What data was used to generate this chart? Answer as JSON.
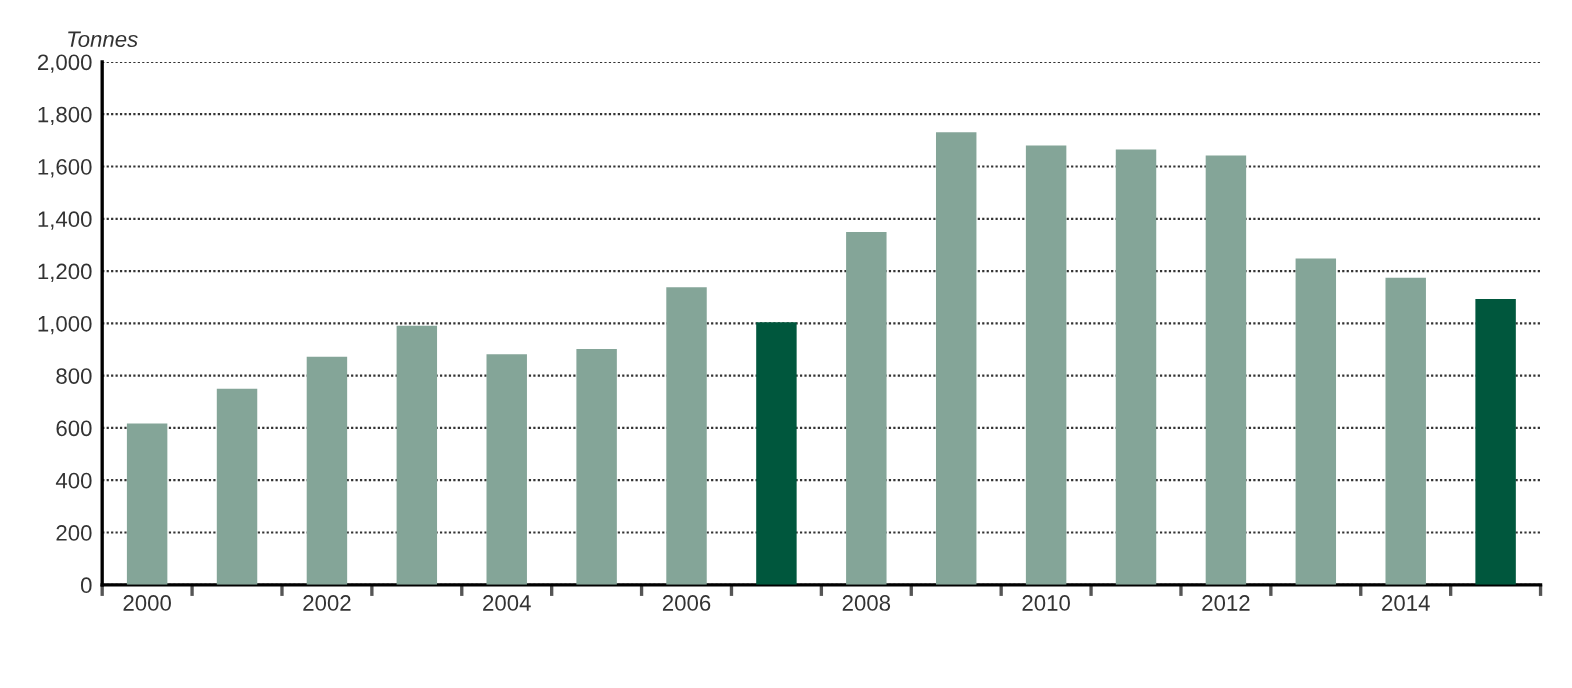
{
  "chart_data": {
    "type": "bar",
    "ylabel": "Tonnes",
    "categories": [
      "2000",
      null,
      "2002",
      null,
      "2004",
      null,
      "2006",
      null,
      "2008",
      null,
      "2010",
      null,
      "2012",
      null,
      "2014",
      null
    ],
    "values": [
      617,
      750,
      872,
      991,
      882,
      902,
      1138,
      1004,
      1349,
      1731,
      1680,
      1665,
      1642,
      1248,
      1174,
      1093
    ],
    "colors": [
      "#84a598",
      "#84a598",
      "#84a598",
      "#84a598",
      "#84a598",
      "#84a598",
      "#84a598",
      "#00573d",
      "#84a598",
      "#84a598",
      "#84a598",
      "#84a598",
      "#84a598",
      "#84a598",
      "#84a598",
      "#00573d"
    ],
    "ylim": [
      0,
      2000
    ],
    "yticks": [
      0,
      200,
      400,
      600,
      800,
      {
        "value": 1000,
        "label": "1,000"
      },
      {
        "value": 1200,
        "label": "1,200"
      },
      {
        "value": 1400,
        "label": "1,400"
      },
      {
        "value": 1600,
        "label": "1,600"
      },
      {
        "value": 1800,
        "label": "1,800"
      },
      {
        "value": 2000,
        "label": "2,000"
      }
    ],
    "grid": "y"
  }
}
